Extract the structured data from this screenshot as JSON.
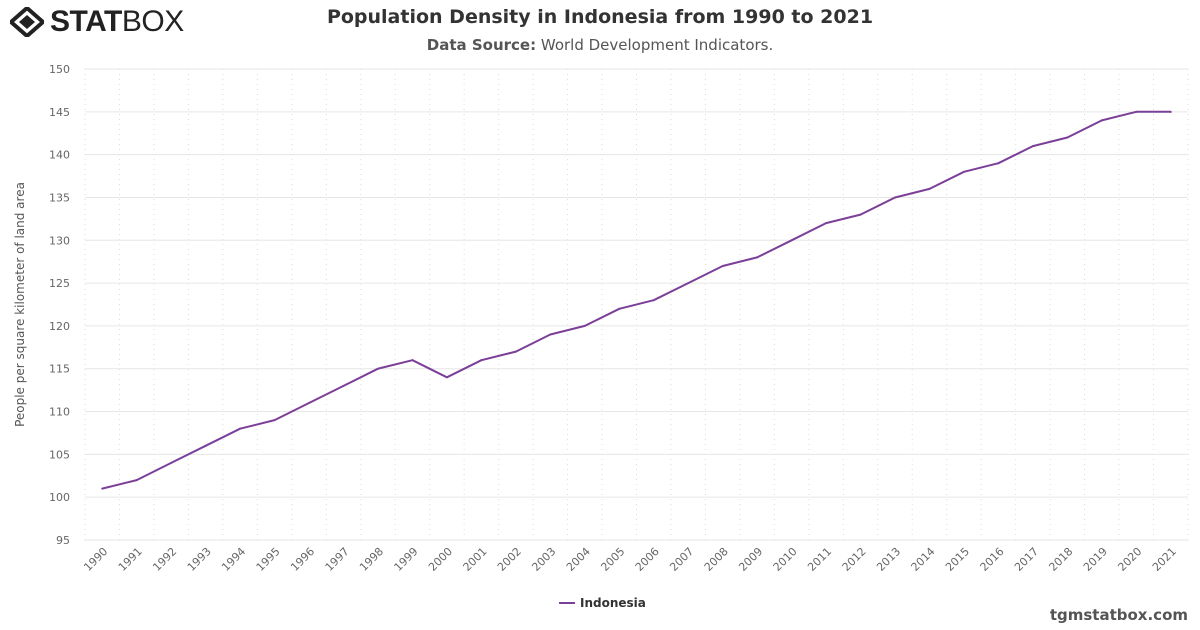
{
  "logo": {
    "text_bold": "STAT",
    "text_light": "BOX"
  },
  "title": "Population Density in Indonesia from 1990 to 2021",
  "subtitle": {
    "label": "Data Source:",
    "value": "World Development Indicators."
  },
  "footer": "tgmstatbox.com",
  "colors": {
    "series": "#7b3f98",
    "grid": "#e6e6e6",
    "axis_text": "#666666"
  },
  "chart_data": {
    "type": "line",
    "title": "Population Density in Indonesia from 1990 to 2021",
    "xlabel": "",
    "ylabel": "People per square kilometer of land area",
    "ylim": [
      95,
      150
    ],
    "yticks": [
      95,
      100,
      105,
      110,
      115,
      120,
      125,
      130,
      135,
      140,
      145,
      150
    ],
    "grid": true,
    "legend": "bottom-center",
    "categories": [
      "1990",
      "1991",
      "1992",
      "1993",
      "1994",
      "1995",
      "1996",
      "1997",
      "1998",
      "1999",
      "2000",
      "2001",
      "2002",
      "2003",
      "2004",
      "2005",
      "2006",
      "2007",
      "2008",
      "2009",
      "2010",
      "2011",
      "2012",
      "2013",
      "2014",
      "2015",
      "2016",
      "2017",
      "2018",
      "2019",
      "2020",
      "2021"
    ],
    "series": [
      {
        "name": "Indonesia",
        "values": [
          101,
          102,
          104,
          106,
          108,
          109,
          111,
          113,
          115,
          116,
          114,
          116,
          117,
          119,
          120,
          122,
          123,
          125,
          127,
          128,
          130,
          132,
          133,
          135,
          136,
          138,
          139,
          141,
          142,
          144,
          145,
          145
        ]
      }
    ]
  }
}
